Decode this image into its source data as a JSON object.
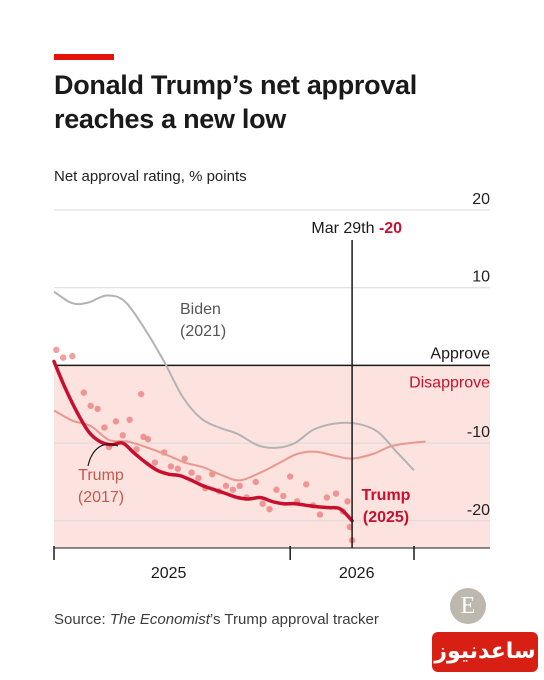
{
  "title": "Donald Trump’s net approval reaches a new low",
  "subtitle": "Net approval rating, % points",
  "source": {
    "prefix": "Source: ",
    "publication": "The Economist",
    "suffix": "’s Trump approval tracker"
  },
  "logo_letter": "E",
  "watermark": "ساعدنیوز",
  "colors": {
    "accent": "#e3120b",
    "trump2025": "#c8102e",
    "trump2017": "#e8998f",
    "biden": "#b3b3b3",
    "disapprove_band": "#fde3df",
    "grid": "#d9d9d9"
  },
  "chart_data": {
    "type": "line",
    "title": "Donald Trump’s net approval reaches a new low",
    "ylabel": "Net approval rating, % points",
    "xlabel": "",
    "y_unit_note": "0 line labelled Approve (above) / Disapprove (below)",
    "x_unit": "months since inauguration (January 20th of first year)",
    "xlim": [
      0,
      19.5
    ],
    "ylim": [
      -23.5,
      20
    ],
    "x_ticks": [
      {
        "label": "2025",
        "x": 5
      },
      {
        "label": "2026",
        "x": 13.2
      }
    ],
    "x_gridlines": [
      0,
      10.3,
      15.7
    ],
    "y_ticks": [
      {
        "label": "20",
        "y": 20
      },
      {
        "label": "10",
        "y": 10
      },
      {
        "label": "-10",
        "y": -10
      },
      {
        "label": "-20",
        "y": -20
      }
    ],
    "zero_labels": {
      "approve": "Approve",
      "disapprove": "Disapprove"
    },
    "grid": true,
    "marker": {
      "x": 13,
      "label": "Mar 29th",
      "value_label": "-20",
      "value": -20
    },
    "series": [
      {
        "name": "Biden (2021)",
        "label_lines": [
          "Biden",
          "(2021)"
        ],
        "x": [
          0,
          0.8,
          1.5,
          2.3,
          3.1,
          4,
          4.8,
          5.6,
          6.4,
          7.2,
          8,
          8.9,
          9.7,
          10.5,
          11.3,
          12.2,
          13.2,
          14.1,
          14.9,
          15.7
        ],
        "values": [
          9.5,
          8,
          8.1,
          9,
          8.2,
          4.5,
          0.5,
          -4,
          -6.8,
          -8,
          -8.8,
          -10.3,
          -10.6,
          -10,
          -8.3,
          -7.5,
          -7.5,
          -8.5,
          -11,
          -13.5
        ]
      },
      {
        "name": "Trump (2017)",
        "label_lines": [
          "Trump",
          "(2017)"
        ],
        "x": [
          0,
          0.8,
          1.6,
          2.4,
          3.2,
          4,
          4.9,
          5.7,
          6.5,
          7.3,
          8.1,
          9,
          9.8,
          10.6,
          11.4,
          12.2,
          13,
          13.9,
          14.7,
          15.5,
          16.2
        ],
        "values": [
          -5.8,
          -7.1,
          -7.8,
          -9.6,
          -9.8,
          -10.5,
          -11.5,
          -12.5,
          -13.1,
          -14.1,
          -14.8,
          -13.8,
          -12.6,
          -11.4,
          -11.1,
          -11.6,
          -12,
          -11.4,
          -10.4,
          -10,
          -9.8
        ]
      },
      {
        "name": "Trump (2025)",
        "label_lines": [
          "Trump",
          "(2025)"
        ],
        "x": [
          0,
          0.5,
          1,
          1.5,
          2,
          2.5,
          3,
          3.5,
          4,
          4.5,
          5,
          5.5,
          6,
          6.5,
          7,
          7.5,
          8,
          8.5,
          9,
          9.5,
          10,
          10.5,
          11,
          11.5,
          12,
          12.5,
          13
        ],
        "values": [
          0.5,
          -3,
          -6,
          -8.5,
          -9.8,
          -10.2,
          -10,
          -11.3,
          -12.5,
          -13.5,
          -14,
          -14.2,
          -14.8,
          -15.5,
          -16,
          -16.5,
          -17,
          -17.2,
          -17,
          -17.5,
          -17.8,
          -17.8,
          -18,
          -18.2,
          -18.3,
          -18.5,
          -20
        ]
      }
    ],
    "poll_points": [
      [
        0.1,
        2
      ],
      [
        0.4,
        1
      ],
      [
        0.8,
        1.2
      ],
      [
        1.3,
        -3.5
      ],
      [
        1.6,
        -5.2
      ],
      [
        1.9,
        -5.6
      ],
      [
        2.2,
        -8
      ],
      [
        2.4,
        -10.5
      ],
      [
        2.7,
        -7.2
      ],
      [
        3,
        -9
      ],
      [
        3.3,
        -7
      ],
      [
        3.6,
        -10.8
      ],
      [
        3.9,
        -9.2
      ],
      [
        4.1,
        -9.5
      ],
      [
        3.8,
        -3.7
      ],
      [
        4.4,
        -12.5
      ],
      [
        4.8,
        -11.2
      ],
      [
        5.1,
        -13
      ],
      [
        5.4,
        -13.3
      ],
      [
        5.7,
        -12
      ],
      [
        6,
        -13.8
      ],
      [
        6.3,
        -14.5
      ],
      [
        6.6,
        -15.8
      ],
      [
        6.9,
        -14
      ],
      [
        7.2,
        -16.2
      ],
      [
        7.5,
        -15.5
      ],
      [
        7.8,
        -16
      ],
      [
        8.1,
        -15.5
      ],
      [
        8.4,
        -17
      ],
      [
        8.8,
        -15
      ],
      [
        9.1,
        -17.8
      ],
      [
        9.4,
        -18.5
      ],
      [
        9.7,
        -16
      ],
      [
        10,
        -16.8
      ],
      [
        10.3,
        -14.3
      ],
      [
        10.6,
        -17.5
      ],
      [
        11,
        -15.3
      ],
      [
        11.3,
        -18
      ],
      [
        11.6,
        -19.2
      ],
      [
        11.9,
        -17
      ],
      [
        12.3,
        -16.5
      ],
      [
        12.6,
        -18.8
      ],
      [
        12.9,
        -20.8
      ],
      [
        13,
        -22.5
      ],
      [
        12.8,
        -17.5
      ]
    ]
  }
}
